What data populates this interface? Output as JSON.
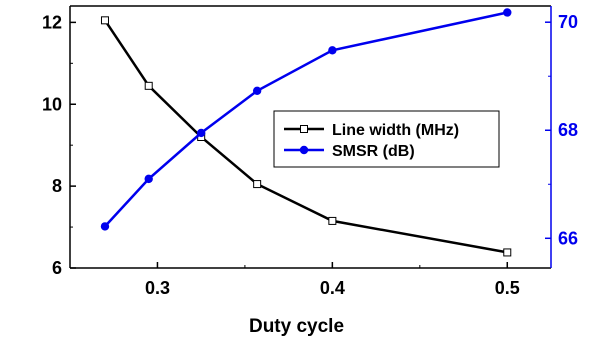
{
  "chart_data": {
    "type": "line",
    "title": "",
    "xlabel": "Duty cycle",
    "ylabel_left": "",
    "ylabel_right": "",
    "xlim": [
      0.25,
      0.525
    ],
    "ylim_left": [
      6,
      12.4
    ],
    "ylim_right": [
      65.45,
      70.3
    ],
    "x_ticks": [
      0.3,
      0.4,
      0.5
    ],
    "x_tick_labels": [
      "0.3",
      "0.4",
      "0.5"
    ],
    "y_left_ticks": [
      6,
      8,
      10,
      12
    ],
    "y_left_tick_labels": [
      "6",
      "8",
      "10",
      "12"
    ],
    "y_right_ticks": [
      66,
      68,
      70
    ],
    "y_right_tick_labels": [
      "66",
      "68",
      "70"
    ],
    "grid": false,
    "legend_position": "center-right",
    "series": [
      {
        "name": "Line width (MHz)",
        "axis": "left",
        "color": "#000000",
        "marker": "open-square",
        "x": [
          0.27,
          0.295,
          0.325,
          0.357,
          0.4,
          0.5
        ],
        "values": [
          12.05,
          10.45,
          9.2,
          8.05,
          7.15,
          6.38
        ]
      },
      {
        "name": "SMSR (dB)",
        "axis": "right",
        "color": "#0000ee",
        "marker": "filled-circle",
        "x": [
          0.27,
          0.295,
          0.325,
          0.357,
          0.4,
          0.5
        ],
        "values": [
          66.22,
          67.1,
          67.95,
          68.73,
          69.48,
          70.18
        ]
      }
    ]
  }
}
